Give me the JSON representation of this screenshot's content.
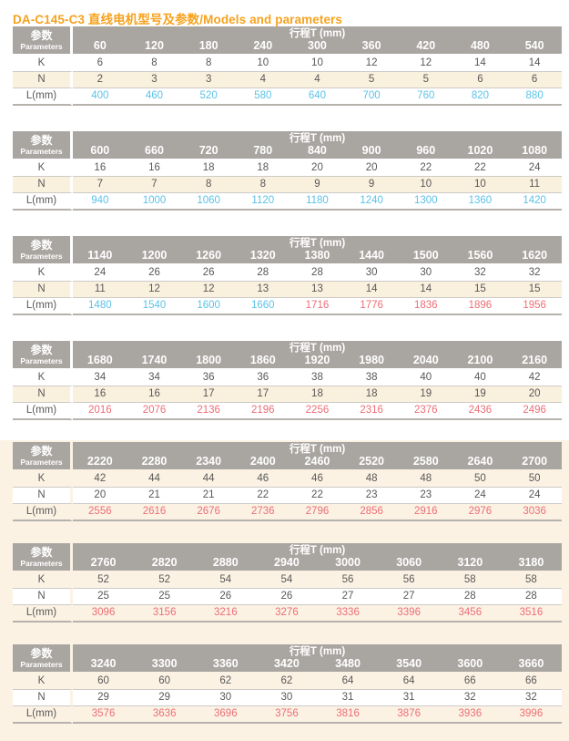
{
  "page": {
    "title": "DA-C145-C3 直线电机型号及参数/Models and parameters"
  },
  "table_header": {
    "param_label_zh": "参数",
    "param_label_en": "Parameters",
    "stroke_label": "行程T (mm)"
  },
  "row_labels": {
    "k": "K",
    "n": "N",
    "l": "L(mm)"
  },
  "colors": {
    "accent_orange": "#F6A21E",
    "header_gray": "#A9A5A1",
    "body_text_gray": "#5A5857",
    "value_blue": "#5BC2E7",
    "value_red": "#EC6E76",
    "stripe_cream": "#FAF0DE",
    "panel_cream": "#FBF2E4"
  },
  "tables": [
    {
      "on_cream_panel": false,
      "t": [
        60,
        120,
        180,
        240,
        300,
        360,
        420,
        480,
        540
      ],
      "k": [
        6,
        8,
        8,
        10,
        10,
        12,
        12,
        14,
        14
      ],
      "n": [
        2,
        3,
        3,
        4,
        4,
        5,
        5,
        6,
        6
      ],
      "l": [
        400,
        460,
        520,
        580,
        640,
        700,
        760,
        820,
        880
      ],
      "l_colors": [
        "blue",
        "blue",
        "blue",
        "blue",
        "blue",
        "blue",
        "blue",
        "blue",
        "blue"
      ]
    },
    {
      "on_cream_panel": false,
      "t": [
        600,
        660,
        720,
        780,
        840,
        900,
        960,
        1020,
        1080
      ],
      "k": [
        16,
        16,
        18,
        18,
        20,
        20,
        22,
        22,
        24
      ],
      "n": [
        7,
        7,
        8,
        8,
        9,
        9,
        10,
        10,
        11
      ],
      "l": [
        940,
        1000,
        1060,
        1120,
        1180,
        1240,
        1300,
        1360,
        1420
      ],
      "l_colors": [
        "blue",
        "blue",
        "blue",
        "blue",
        "blue",
        "blue",
        "blue",
        "blue",
        "blue"
      ]
    },
    {
      "on_cream_panel": false,
      "t": [
        1140,
        1200,
        1260,
        1320,
        1380,
        1440,
        1500,
        1560,
        1620
      ],
      "k": [
        24,
        26,
        26,
        28,
        28,
        30,
        30,
        32,
        32
      ],
      "n": [
        11,
        12,
        12,
        13,
        13,
        14,
        14,
        15,
        15
      ],
      "l": [
        1480,
        1540,
        1600,
        1660,
        1716,
        1776,
        1836,
        1896,
        1956
      ],
      "l_colors": [
        "blue",
        "blue",
        "blue",
        "blue",
        "red",
        "red",
        "red",
        "red",
        "red"
      ]
    },
    {
      "on_cream_panel": false,
      "t": [
        1680,
        1740,
        1800,
        1860,
        1920,
        1980,
        2040,
        2100,
        2160
      ],
      "k": [
        34,
        34,
        36,
        36,
        38,
        38,
        40,
        40,
        42
      ],
      "n": [
        16,
        16,
        17,
        17,
        18,
        18,
        19,
        19,
        20
      ],
      "l": [
        2016,
        2076,
        2136,
        2196,
        2256,
        2316,
        2376,
        2436,
        2496
      ],
      "l_colors": [
        "red",
        "red",
        "red",
        "red",
        "red",
        "red",
        "red",
        "red",
        "red"
      ]
    },
    {
      "on_cream_panel": true,
      "t": [
        2220,
        2280,
        2340,
        2400,
        2460,
        2520,
        2580,
        2640,
        2700
      ],
      "k": [
        42,
        44,
        44,
        46,
        46,
        48,
        48,
        50,
        50
      ],
      "n": [
        20,
        21,
        21,
        22,
        22,
        23,
        23,
        24,
        24
      ],
      "l": [
        2556,
        2616,
        2676,
        2736,
        2796,
        2856,
        2916,
        2976,
        3036
      ],
      "l_colors": [
        "red",
        "red",
        "red",
        "red",
        "red",
        "red",
        "red",
        "red",
        "red"
      ]
    },
    {
      "on_cream_panel": true,
      "t": [
        2760,
        2820,
        2880,
        2940,
        3000,
        3060,
        3120,
        3180
      ],
      "k": [
        52,
        52,
        54,
        54,
        56,
        56,
        58,
        58
      ],
      "n": [
        25,
        25,
        26,
        26,
        27,
        27,
        28,
        28
      ],
      "l": [
        3096,
        3156,
        3216,
        3276,
        3336,
        3396,
        3456,
        3516
      ],
      "l_colors": [
        "red",
        "red",
        "red",
        "red",
        "red",
        "red",
        "red",
        "red"
      ]
    },
    {
      "on_cream_panel": true,
      "t": [
        3240,
        3300,
        3360,
        3420,
        3480,
        3540,
        3600,
        3660
      ],
      "k": [
        60,
        60,
        62,
        62,
        64,
        64,
        66,
        66
      ],
      "n": [
        29,
        29,
        30,
        30,
        31,
        31,
        32,
        32
      ],
      "l": [
        3576,
        3636,
        3696,
        3756,
        3816,
        3876,
        3936,
        3996
      ],
      "l_colors": [
        "red",
        "red",
        "red",
        "red",
        "red",
        "red",
        "red",
        "red"
      ]
    }
  ]
}
